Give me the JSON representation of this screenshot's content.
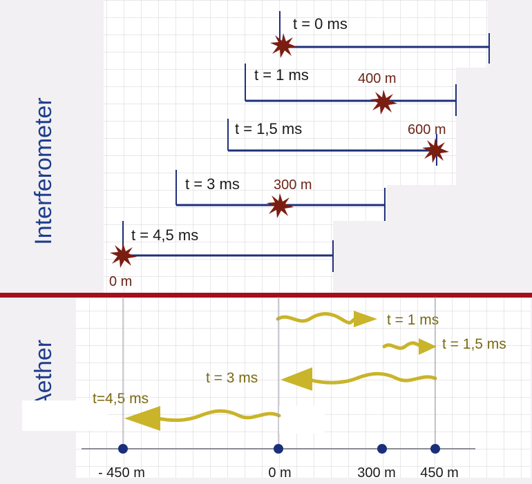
{
  "sections": {
    "interferometer": "Interferometer",
    "aether": "Aether"
  },
  "interferometer_rows": [
    {
      "time_label": "t = 0 ms",
      "distance_label": ""
    },
    {
      "time_label": "t = 1 ms",
      "distance_label": "400 m"
    },
    {
      "time_label": "t = 1,5 ms",
      "distance_label": "600 m"
    },
    {
      "time_label": "t = 3 ms",
      "distance_label": "300 m"
    },
    {
      "time_label": "t = 4,5 ms",
      "distance_label": "0 m"
    }
  ],
  "aether_waves": [
    {
      "time_label": "t = 1 ms"
    },
    {
      "time_label": "t = 1,5 ms"
    },
    {
      "time_label": "t = 3 ms"
    },
    {
      "time_label": "t=4,5 ms"
    }
  ],
  "axis_labels": [
    "- 450 m",
    "0 m",
    "300 m",
    "450 m"
  ],
  "colors": {
    "rod": "#1e2f7a",
    "burst": "#7a1e12",
    "wave": "#c9b42a",
    "divider": "#a3101c",
    "text": "#1a1a1a",
    "burst_text": "#6a2418",
    "wave_text": "#7a6a10",
    "section_text": "#1f3d8c",
    "dot": "#1a2f7a",
    "grid": "#d4d4d8"
  }
}
